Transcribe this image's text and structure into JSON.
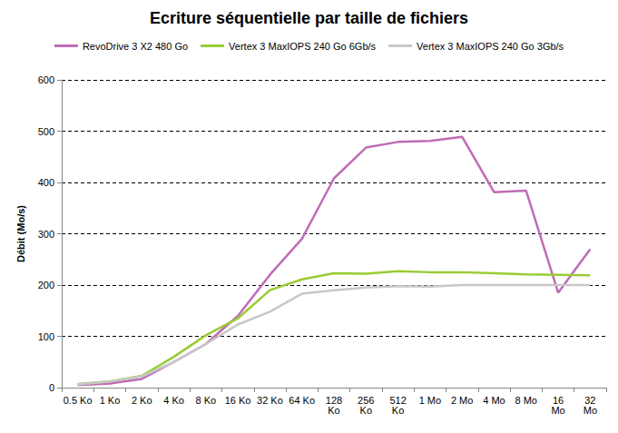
{
  "chart_data": {
    "type": "line",
    "title": "Ecriture séquentielle par taille de fichiers",
    "y_label": "Débit (Mo/s)",
    "categories": [
      "0.5 Ko",
      "1 Ko",
      "2 Ko",
      "4 Ko",
      "8 Ko",
      "16 Ko",
      "32 Ko",
      "64 Ko",
      "128 Ko",
      "256 Ko",
      "512 Ko",
      "1 Mo",
      "2 Mo",
      "4 Mo",
      "8 Mo",
      "16 Mo",
      "32 Mo"
    ],
    "series": [
      {
        "name": "RevoDrive 3 X2 480 Go",
        "color": "#bf6cb6",
        "values": [
          5,
          8,
          17,
          50,
          85,
          140,
          220,
          290,
          408,
          468,
          479,
          481,
          489,
          381,
          384,
          185,
          270
        ]
      },
      {
        "name": "Vertex 3 MaxIOPS 240 Go 6Gb/s",
        "color": "#9acb34",
        "values": [
          7,
          12,
          23,
          60,
          102,
          135,
          190,
          211,
          223,
          222,
          227,
          225,
          225,
          223,
          221,
          220,
          219
        ]
      },
      {
        "name": "Vertex 3 MaxIOPS 240 Go 3Gb/s",
        "color": "#c8c8c8",
        "values": [
          6,
          12,
          22,
          50,
          85,
          123,
          148,
          183,
          190,
          195,
          198,
          197,
          200,
          200,
          200,
          200,
          200
        ]
      }
    ],
    "ylim": [
      0,
      600
    ],
    "yticks": [
      0,
      100,
      200,
      300,
      400,
      500,
      600
    ],
    "grid": true,
    "legend": "top"
  }
}
